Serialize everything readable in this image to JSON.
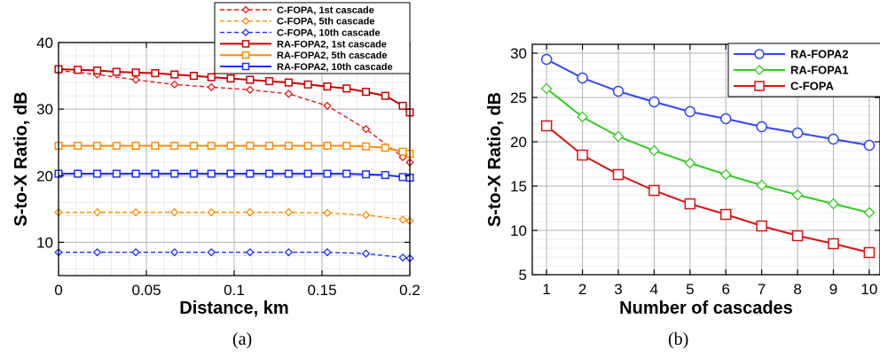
{
  "figure": {
    "captions": [
      "(a)",
      "(b)"
    ]
  },
  "chart_data": [
    {
      "type": "line",
      "xlabel": "Distance, km",
      "ylabel": "S-to-X Ratio, dB",
      "xlim": [
        0,
        0.2
      ],
      "ylim": [
        5,
        40
      ],
      "xticks": [
        0,
        0.05,
        0.1,
        0.15,
        0.2
      ],
      "xtick_labels": [
        "0",
        "0.05",
        "0.1",
        "0.15",
        "0.2"
      ],
      "yticks": [
        10,
        20,
        30,
        40
      ],
      "ytick_labels": [
        "10",
        "20",
        "30",
        "40"
      ],
      "grid": true,
      "legend_position": "top-right",
      "series": [
        {
          "name": "C-FOPA, 1st cascade",
          "color": "#e41a1c",
          "style": "dashed",
          "marker": "diamond",
          "x": [
            0,
            0.022,
            0.044,
            0.066,
            0.087,
            0.109,
            0.131,
            0.153,
            0.175,
            0.196,
            0.2
          ],
          "y": [
            35.8,
            35.2,
            34.4,
            33.7,
            33.3,
            32.9,
            32.3,
            30.5,
            27.0,
            22.8,
            22.0
          ]
        },
        {
          "name": "C-FOPA, 5th cascade",
          "color": "#ff8c00",
          "style": "dashed",
          "marker": "diamond",
          "x": [
            0,
            0.022,
            0.044,
            0.066,
            0.087,
            0.109,
            0.131,
            0.153,
            0.175,
            0.196,
            0.2
          ],
          "y": [
            14.5,
            14.5,
            14.5,
            14.5,
            14.5,
            14.5,
            14.5,
            14.4,
            14.1,
            13.4,
            13.2
          ]
        },
        {
          "name": "C-FOPA, 10th cascade",
          "color": "#1f2fff",
          "style": "dashed",
          "marker": "diamond",
          "x": [
            0,
            0.022,
            0.044,
            0.066,
            0.087,
            0.109,
            0.131,
            0.153,
            0.175,
            0.196,
            0.2
          ],
          "y": [
            8.5,
            8.5,
            8.5,
            8.5,
            8.5,
            8.5,
            8.5,
            8.5,
            8.3,
            7.7,
            7.6
          ]
        },
        {
          "name": "RA-FOPA2, 1st cascade",
          "color": "#cc0000",
          "style": "solid",
          "marker": "square",
          "x": [
            0,
            0.011,
            0.022,
            0.033,
            0.044,
            0.055,
            0.066,
            0.077,
            0.087,
            0.098,
            0.109,
            0.12,
            0.131,
            0.142,
            0.153,
            0.164,
            0.175,
            0.186,
            0.196,
            0.2
          ],
          "y": [
            36.0,
            35.9,
            35.8,
            35.6,
            35.5,
            35.4,
            35.2,
            35.0,
            34.8,
            34.6,
            34.4,
            34.2,
            34.0,
            33.7,
            33.4,
            33.1,
            32.6,
            32.0,
            30.5,
            29.5
          ]
        },
        {
          "name": "RA-FOPA2, 5th cascade",
          "color": "#ff8c00",
          "style": "solid",
          "marker": "square",
          "x": [
            0,
            0.011,
            0.022,
            0.033,
            0.044,
            0.055,
            0.066,
            0.077,
            0.087,
            0.098,
            0.109,
            0.12,
            0.131,
            0.142,
            0.153,
            0.164,
            0.175,
            0.186,
            0.196,
            0.2
          ],
          "y": [
            24.5,
            24.5,
            24.5,
            24.5,
            24.5,
            24.5,
            24.5,
            24.5,
            24.5,
            24.5,
            24.5,
            24.5,
            24.5,
            24.5,
            24.5,
            24.5,
            24.4,
            24.2,
            23.6,
            23.3
          ]
        },
        {
          "name": "RA-FOPA2, 10th cascade",
          "color": "#1f2fff",
          "style": "solid",
          "marker": "square",
          "x": [
            0,
            0.011,
            0.022,
            0.033,
            0.044,
            0.055,
            0.066,
            0.077,
            0.087,
            0.098,
            0.109,
            0.12,
            0.131,
            0.142,
            0.153,
            0.164,
            0.175,
            0.186,
            0.196,
            0.2
          ],
          "y": [
            20.3,
            20.3,
            20.3,
            20.3,
            20.3,
            20.3,
            20.3,
            20.3,
            20.3,
            20.3,
            20.3,
            20.3,
            20.3,
            20.3,
            20.3,
            20.3,
            20.2,
            20.1,
            19.8,
            19.7
          ]
        }
      ]
    },
    {
      "type": "line",
      "xlabel": "Number of cascades",
      "ylabel": "S-to-X Ratio, dB",
      "xlim": [
        0.6,
        10.3
      ],
      "ylim": [
        5,
        31
      ],
      "xticks": [
        1,
        2,
        3,
        4,
        5,
        6,
        7,
        8,
        9,
        10
      ],
      "xtick_labels": [
        "1",
        "2",
        "3",
        "4",
        "5",
        "6",
        "7",
        "8",
        "9",
        "10"
      ],
      "yticks": [
        5,
        10,
        15,
        20,
        25,
        30
      ],
      "ytick_labels": [
        "5",
        "10",
        "15",
        "20",
        "25",
        "30"
      ],
      "grid": true,
      "legend_position": "top-right",
      "categories": [
        1,
        2,
        3,
        4,
        5,
        6,
        7,
        8,
        9,
        10
      ],
      "series": [
        {
          "name": "RA-FOPA2",
          "color": "#3344ff",
          "marker": "circle",
          "values": [
            29.3,
            27.2,
            25.7,
            24.5,
            23.4,
            22.6,
            21.7,
            21.0,
            20.3,
            19.6
          ]
        },
        {
          "name": "RA-FOPA1",
          "color": "#33cc22",
          "marker": "diamond",
          "values": [
            26.0,
            22.8,
            20.6,
            19.0,
            17.6,
            16.3,
            15.1,
            14.0,
            13.0,
            12.0
          ]
        },
        {
          "name": "C-FOPA",
          "color": "#dd1111",
          "marker": "square",
          "values": [
            21.8,
            18.5,
            16.3,
            14.5,
            13.0,
            11.8,
            10.5,
            9.4,
            8.5,
            7.5
          ]
        }
      ]
    }
  ]
}
